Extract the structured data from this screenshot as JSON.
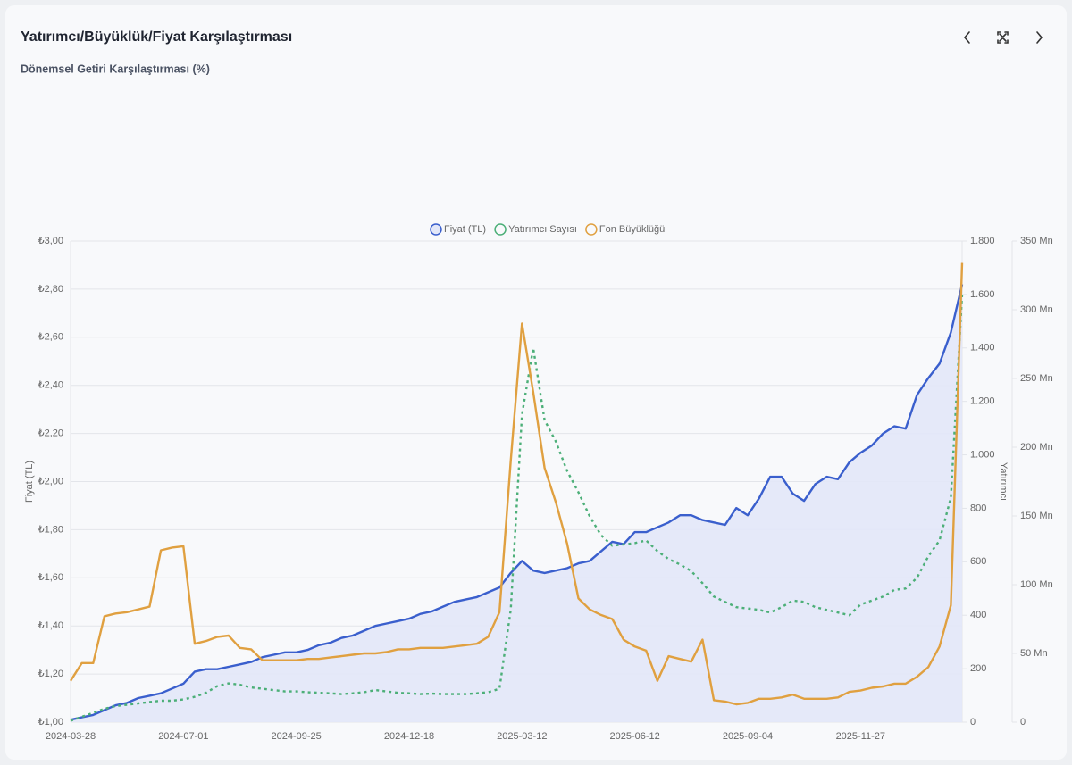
{
  "chart_data": {
    "type": "line",
    "title": "Yatırımcı/Büyüklük/Fiyat Karşılaştırması",
    "subtitle": "Dönemsel Getiri Karşılaştırması (%)",
    "y_label": "Fiyat (TL)",
    "y2_label": "Yatırımcı",
    "grid": true,
    "legend": "top",
    "categories": [
      "2024-03-28",
      null,
      null,
      null,
      null,
      null,
      null,
      null,
      null,
      null,
      "2024-07-01",
      null,
      null,
      null,
      null,
      null,
      null,
      null,
      null,
      null,
      "2024-09-25",
      null,
      null,
      null,
      null,
      null,
      null,
      null,
      null,
      null,
      "2024-12-18",
      null,
      null,
      null,
      null,
      null,
      null,
      null,
      null,
      null,
      "2025-03-12",
      null,
      null,
      null,
      null,
      null,
      null,
      null,
      null,
      null,
      "2025-06-12",
      null,
      null,
      null,
      null,
      null,
      null,
      null,
      null,
      null,
      "2025-09-04",
      null,
      null,
      null,
      null,
      null,
      null,
      null,
      null,
      null,
      "2025-11-27",
      null,
      null,
      null,
      null,
      null,
      null,
      null,
      null,
      null
    ],
    "ylim": [
      1.0,
      3.0
    ],
    "yticks": [
      {
        "value": 1.0,
        "label": "₺1,00"
      },
      {
        "value": 1.2,
        "label": "₺1,20"
      },
      {
        "value": 1.4,
        "label": "₺1,40"
      },
      {
        "value": 1.6,
        "label": "₺1,60"
      },
      {
        "value": 1.8,
        "label": "₺1,80"
      },
      {
        "value": 2.0,
        "label": "₺2,00"
      },
      {
        "value": 2.2,
        "label": "₺2,20"
      },
      {
        "value": 2.4,
        "label": "₺2,40"
      },
      {
        "value": 2.6,
        "label": "₺2,60"
      },
      {
        "value": 2.8,
        "label": "₺2,80"
      },
      {
        "value": 3.0,
        "label": "₺3,00"
      }
    ],
    "y2lim": [
      0,
      1800
    ],
    "y2ticks": [
      0,
      200,
      400,
      600,
      800,
      {
        "value": 1000,
        "label": "1.000"
      },
      {
        "value": 1200,
        "label": "1.200"
      },
      {
        "value": 1400,
        "label": "1.400"
      },
      {
        "value": 1600,
        "label": "1.600"
      },
      {
        "value": 1800,
        "label": "1.800"
      }
    ],
    "y3lim": [
      0,
      350
    ],
    "y3ticks": [
      0,
      {
        "value": 50,
        "label": "50 Mn"
      },
      {
        "value": 100,
        "label": "100 Mn"
      },
      {
        "value": 150,
        "label": "150 Mn"
      },
      {
        "value": 200,
        "label": "200 Mn"
      },
      {
        "value": 250,
        "label": "250 Mn"
      },
      {
        "value": 300,
        "label": "300 Mn"
      },
      {
        "value": 350,
        "label": "350 Mn"
      }
    ],
    "series": [
      {
        "name": "Fiyat (TL)",
        "color": "#3a5fcd",
        "fill": "#e2e7f8",
        "axis": "y",
        "values": [
          1.01,
          1.02,
          1.03,
          1.05,
          1.07,
          1.08,
          1.1,
          1.11,
          1.12,
          1.14,
          1.16,
          1.21,
          1.22,
          1.22,
          1.23,
          1.24,
          1.25,
          1.27,
          1.28,
          1.29,
          1.29,
          1.3,
          1.32,
          1.33,
          1.35,
          1.36,
          1.38,
          1.4,
          1.41,
          1.42,
          1.43,
          1.45,
          1.46,
          1.48,
          1.5,
          1.51,
          1.52,
          1.54,
          1.56,
          1.62,
          1.67,
          1.63,
          1.62,
          1.63,
          1.64,
          1.66,
          1.67,
          1.71,
          1.75,
          1.74,
          1.79,
          1.79,
          1.81,
          1.83,
          1.86,
          1.86,
          1.84,
          1.83,
          1.82,
          1.89,
          1.86,
          1.93,
          2.02,
          2.02,
          1.95,
          1.92,
          1.99,
          2.02,
          2.01,
          2.08,
          2.12,
          2.15,
          2.2,
          2.23,
          2.22,
          2.36,
          2.43,
          2.49,
          2.62,
          2.82
        ]
      },
      {
        "name": "Yatırımcı Sayısı",
        "color": "#4caf78",
        "dashed": true,
        "axis": "y2",
        "values": [
          5,
          20,
          35,
          50,
          60,
          65,
          70,
          75,
          80,
          80,
          85,
          95,
          110,
          135,
          145,
          140,
          130,
          125,
          120,
          115,
          115,
          112,
          110,
          108,
          105,
          108,
          112,
          120,
          115,
          110,
          108,
          105,
          107,
          105,
          105,
          105,
          108,
          112,
          125,
          420,
          1150,
          1400,
          1130,
          1050,
          940,
          860,
          770,
          700,
          660,
          665,
          670,
          680,
          640,
          610,
          590,
          565,
          520,
          470,
          450,
          430,
          425,
          420,
          410,
          430,
          455,
          450,
          430,
          420,
          410,
          400,
          440,
          455,
          470,
          495,
          500,
          540,
          620,
          680,
          840,
          1600
        ]
      },
      {
        "name": "Fon Büyüklüğü",
        "color": "#e0a040",
        "axis": "y3",
        "values": [
          30,
          43,
          43,
          77,
          79,
          80,
          82,
          84,
          125,
          127,
          128,
          57,
          59,
          62,
          63,
          54,
          53,
          45,
          45,
          45,
          45,
          46,
          46,
          47,
          48,
          49,
          50,
          50,
          51,
          53,
          53,
          54,
          54,
          54,
          55,
          56,
          57,
          62,
          80,
          190,
          290,
          240,
          185,
          160,
          130,
          90,
          82,
          78,
          75,
          60,
          55,
          52,
          30,
          48,
          46,
          44,
          60,
          16,
          15,
          13,
          14,
          17,
          17,
          18,
          20,
          17,
          17,
          17,
          18,
          22,
          23,
          25,
          26,
          28,
          28,
          33,
          40,
          55,
          85,
          334
        ]
      }
    ]
  }
}
